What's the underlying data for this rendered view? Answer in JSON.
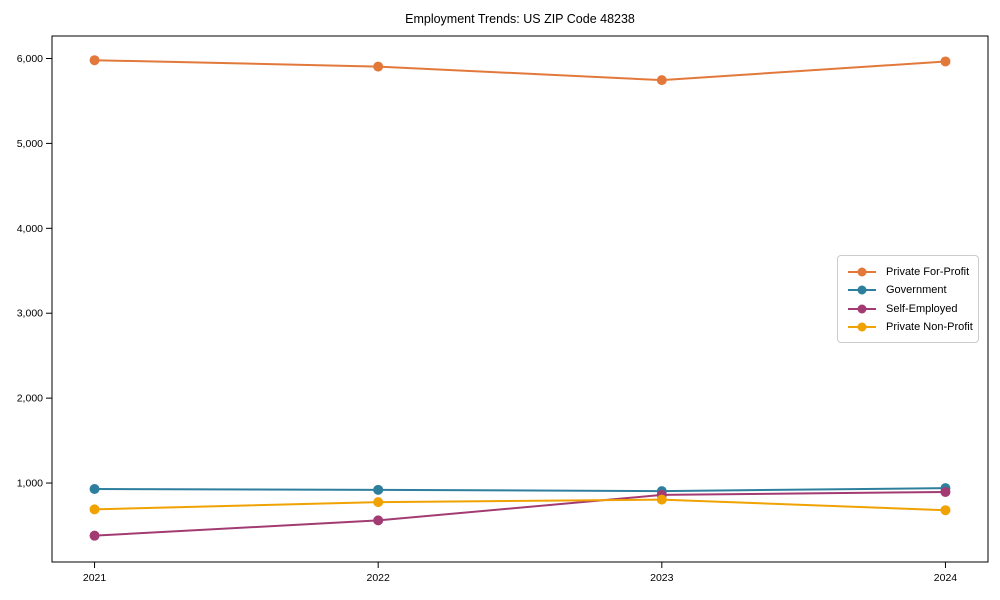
{
  "title": "Employment Trends: US ZIP Code 48238",
  "chart_data": {
    "type": "line",
    "title": "Employment Trends: US ZIP Code 48238",
    "x": [
      2021,
      2022,
      2023,
      2024
    ],
    "x_labels": [
      "2021",
      "2022",
      "2023",
      "2024"
    ],
    "series": [
      {
        "name": "Private For-Profit",
        "color": "#E2793B",
        "values": [
          5980,
          5905,
          5745,
          5965
        ]
      },
      {
        "name": "Government",
        "color": "#2E7F9E",
        "values": [
          930,
          920,
          905,
          940
        ]
      },
      {
        "name": "Self-Employed",
        "color": "#A23B72",
        "values": [
          380,
          560,
          860,
          895
        ]
      },
      {
        "name": "Private Non-Profit",
        "color": "#F0A202",
        "values": [
          690,
          775,
          805,
          680
        ]
      }
    ],
    "yticks": [
      1000,
      2000,
      3000,
      4000,
      5000,
      6000
    ],
    "ytick_labels": [
      "1,000",
      "2,000",
      "3,000",
      "4,000",
      "5,000",
      "6,000"
    ],
    "ylim": [
      70,
      6265
    ],
    "xlim": [
      2020.85,
      2024.15
    ],
    "xlabel": "",
    "ylabel": "",
    "grid": false,
    "legend_position": "center-right",
    "marker": "circle",
    "spine_color": "#000000",
    "tick_color": "#000000"
  }
}
